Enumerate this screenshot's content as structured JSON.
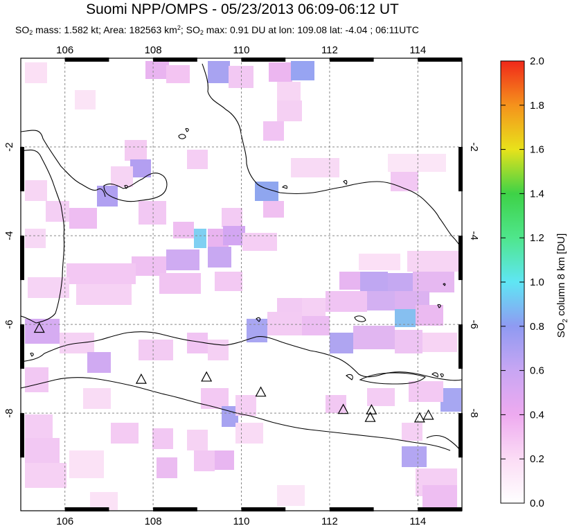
{
  "title": "Suomi NPP/OMPS - 05/23/2013 06:09-06:12 UT",
  "subtitle": {
    "so2_prefix": "SO",
    "so2_sub": "2",
    "mass_text": " mass: 1.582 kt; Area: 182563 km",
    "area_sup": "2",
    "so2max_prefix": "; SO",
    "so2max_sub": "2",
    "rest": " max: 0.91 DU at lon: 109.08 lat: -4.04 ; 06:11UTC"
  },
  "map": {
    "lon_range": [
      105,
      115
    ],
    "lat_range": [
      -10.2,
      0.0
    ],
    "lon_ticks": [
      "106",
      "108",
      "110",
      "112",
      "114"
    ],
    "lat_ticks": [
      "-2",
      "-4",
      "-6",
      "-8"
    ],
    "volcanoes": [
      {
        "lon": 105.42,
        "lat": -6.1
      },
      {
        "lon": 107.73,
        "lat": -7.25
      },
      {
        "lon": 109.21,
        "lat": -7.2
      },
      {
        "lon": 110.44,
        "lat": -7.54
      },
      {
        "lon": 112.31,
        "lat": -7.93
      },
      {
        "lon": 112.95,
        "lat": -7.94
      },
      {
        "lon": 112.92,
        "lat": -8.11
      },
      {
        "lon": 114.04,
        "lat": -8.12
      },
      {
        "lon": 114.24,
        "lat": -8.06
      }
    ]
  },
  "colorbar": {
    "label": "SO2 column 8 km [DU]",
    "label_prefix": "SO",
    "label_sub": "2",
    "label_rest": " column 8 km [DU]",
    "ticks": [
      "0.0",
      "0.2",
      "0.4",
      "0.6",
      "0.8",
      "1.0",
      "1.2",
      "1.4",
      "1.6",
      "1.8",
      "2.0"
    ],
    "min": 0.0,
    "max": 2.0
  }
}
